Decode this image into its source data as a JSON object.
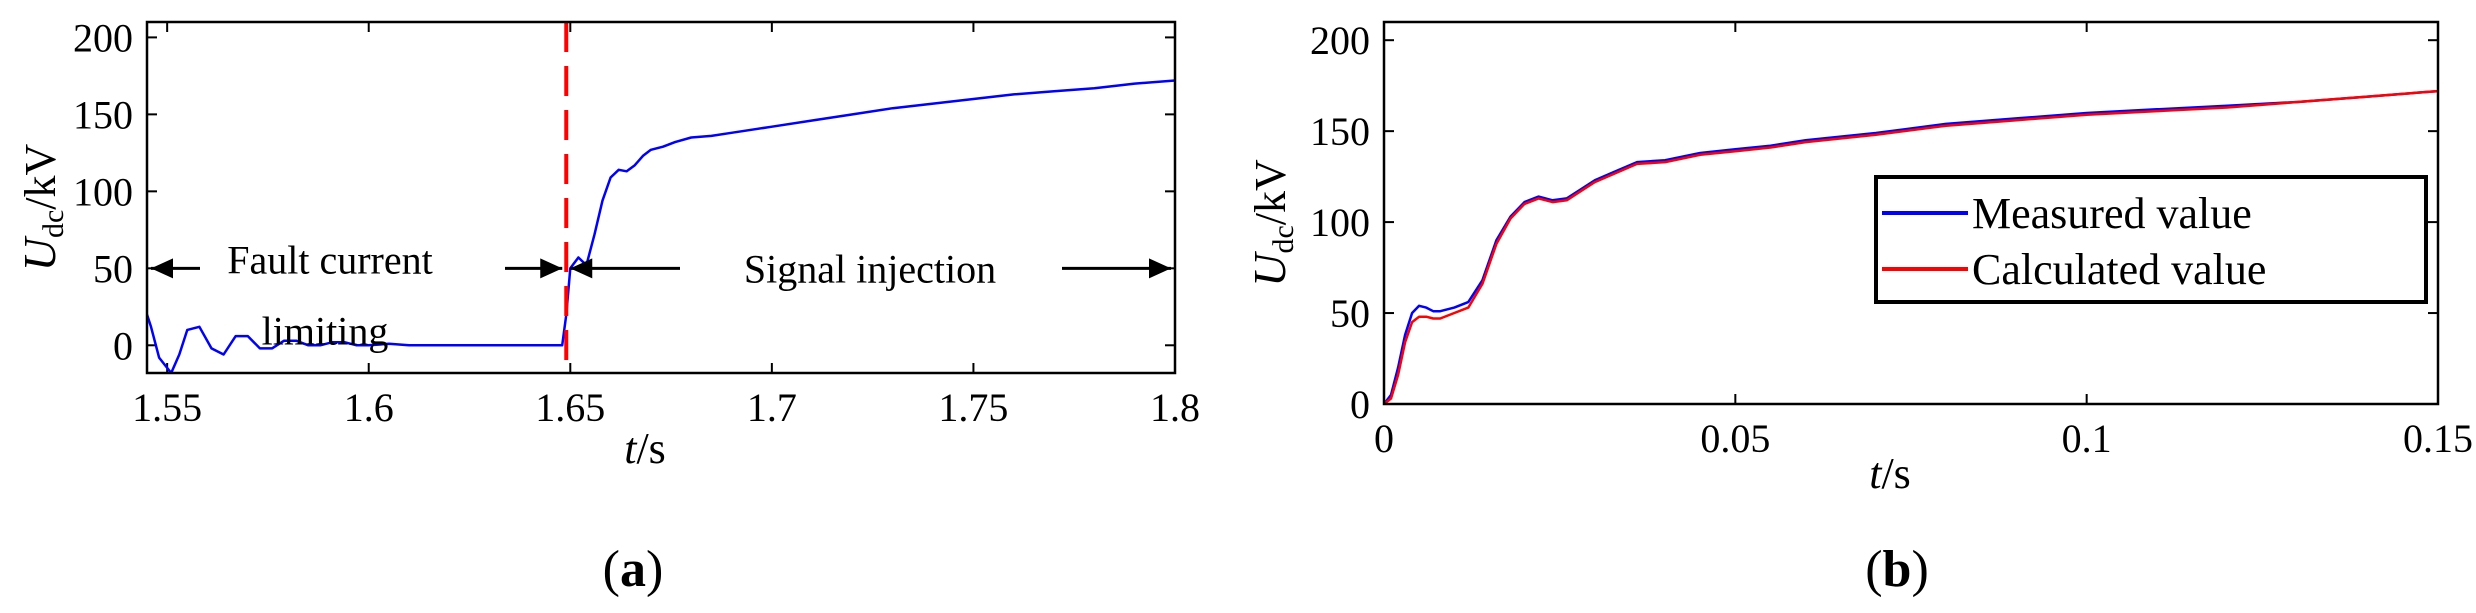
{
  "chart_data": [
    {
      "type": "line",
      "panel_label": {
        "open": "(",
        "letter": "a",
        "close": ")"
      },
      "xlabel": {
        "var": "t",
        "unit": "/s"
      },
      "ylabel": {
        "var": "U",
        "sub": "dc",
        "unit": "/kV"
      },
      "xlim": [
        1.545,
        1.8
      ],
      "ylim": [
        -18,
        210
      ],
      "xticks": [
        1.55,
        1.6,
        1.65,
        1.7,
        1.75,
        1.8
      ],
      "xtick_labels": [
        "1.55",
        "1.6",
        "1.65",
        "1.7",
        "1.75",
        "1.8"
      ],
      "yticks": [
        0,
        50,
        100,
        150,
        200
      ],
      "ytick_labels": [
        "0",
        "50",
        "100",
        "150",
        "200"
      ],
      "series": [
        {
          "name": "U_dc",
          "color": "#0000ff",
          "x": [
            1.545,
            1.546,
            1.548,
            1.551,
            1.553,
            1.555,
            1.558,
            1.561,
            1.564,
            1.567,
            1.57,
            1.573,
            1.576,
            1.579,
            1.582,
            1.585,
            1.588,
            1.591,
            1.594,
            1.597,
            1.6,
            1.605,
            1.61,
            1.615,
            1.62,
            1.63,
            1.64,
            1.648,
            1.649,
            1.65,
            1.652,
            1.654,
            1.656,
            1.658,
            1.66,
            1.662,
            1.664,
            1.666,
            1.668,
            1.67,
            1.673,
            1.676,
            1.68,
            1.685,
            1.69,
            1.7,
            1.71,
            1.72,
            1.73,
            1.74,
            1.75,
            1.76,
            1.77,
            1.78,
            1.79,
            1.8
          ],
          "y": [
            20,
            12,
            -8,
            -18,
            -6,
            10,
            12,
            -2,
            -6,
            6,
            6,
            -2,
            -2,
            3,
            3,
            0,
            0,
            2,
            2,
            0,
            0,
            1,
            0,
            0,
            0,
            0,
            0,
            0,
            20,
            50,
            57,
            52,
            72,
            94,
            109,
            114,
            113,
            117,
            123,
            127,
            129,
            132,
            135,
            136,
            138,
            142,
            146,
            150,
            154,
            157,
            160,
            163,
            165,
            167,
            170,
            172
          ]
        }
      ],
      "vline": {
        "x": 1.649,
        "color": "#ff0000",
        "style": "dashed"
      },
      "annotations": [
        {
          "text": "Fault current",
          "region": "left"
        },
        {
          "text": "limiting",
          "region": "left"
        },
        {
          "text": "Signal injection",
          "region": "right"
        }
      ],
      "arrow_y": 50
    },
    {
      "type": "line",
      "panel_label": {
        "open": "(",
        "letter": "b",
        "close": ")"
      },
      "xlabel": {
        "var": "t",
        "unit": "/s"
      },
      "ylabel": {
        "var": "U",
        "sub": "dc",
        "unit": "/kV"
      },
      "xlim": [
        0,
        0.15
      ],
      "ylim": [
        0,
        210
      ],
      "xticks": [
        0,
        0.05,
        0.1,
        0.15
      ],
      "xtick_labels": [
        "0",
        "0.05",
        "0.1",
        "0.15"
      ],
      "yticks": [
        0,
        50,
        100,
        150,
        200
      ],
      "ytick_labels": [
        "0",
        "50",
        "100",
        "150",
        "200"
      ],
      "legend": {
        "position": "center-right"
      },
      "series": [
        {
          "name": "Measured value",
          "color": "#0000ff",
          "x": [
            0,
            0.001,
            0.002,
            0.003,
            0.004,
            0.005,
            0.006,
            0.007,
            0.008,
            0.01,
            0.012,
            0.014,
            0.016,
            0.018,
            0.02,
            0.022,
            0.024,
            0.026,
            0.028,
            0.03,
            0.033,
            0.036,
            0.04,
            0.045,
            0.05,
            0.055,
            0.06,
            0.07,
            0.08,
            0.09,
            0.1,
            0.11,
            0.12,
            0.13,
            0.14,
            0.15
          ],
          "y": [
            0,
            5,
            20,
            38,
            50,
            54,
            53,
            51,
            51,
            53,
            56,
            68,
            90,
            103,
            111,
            114,
            112,
            113,
            118,
            123,
            128,
            133,
            134,
            138,
            140,
            142,
            145,
            149,
            154,
            157,
            160,
            162,
            164,
            166,
            169,
            172
          ]
        },
        {
          "name": "Calculated value",
          "color": "#ff0000",
          "x": [
            0,
            0.001,
            0.002,
            0.003,
            0.004,
            0.005,
            0.006,
            0.007,
            0.008,
            0.01,
            0.012,
            0.014,
            0.016,
            0.018,
            0.02,
            0.022,
            0.024,
            0.026,
            0.028,
            0.03,
            0.033,
            0.036,
            0.04,
            0.045,
            0.05,
            0.055,
            0.06,
            0.07,
            0.08,
            0.09,
            0.1,
            0.11,
            0.12,
            0.13,
            0.14,
            0.15
          ],
          "y": [
            0,
            3,
            16,
            34,
            45,
            48,
            48,
            47,
            47,
            50,
            53,
            66,
            88,
            102,
            110,
            113,
            111,
            112,
            117,
            122,
            127,
            132,
            133,
            137,
            139,
            141,
            144,
            148,
            153,
            156,
            159,
            161,
            163,
            166,
            169,
            172
          ]
        }
      ]
    }
  ]
}
